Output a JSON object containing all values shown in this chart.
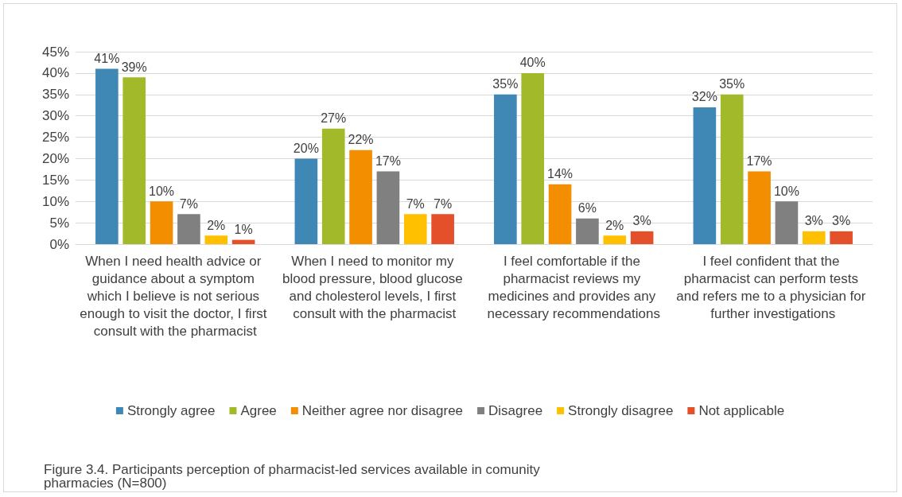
{
  "chart_data": {
    "type": "bar",
    "categories": [
      "When I need health advice or guidance about a symptom which I believe is not serious enough to visit the doctor, I first consult with the pharmacist",
      "When I need to monitor my blood pressure, blood glucose and cholesterol levels, I first consult with the pharmacist",
      "I feel comfortable if the pharmacist reviews my medicines and provides any necessary recommendations",
      "I feel confident that the pharmacist can perform tests and refers me to a physician for further investigations"
    ],
    "series": [
      {
        "name": "Strongly agree",
        "color": "#3f88b5",
        "values": [
          41,
          20,
          35,
          32
        ],
        "value_labels": [
          "41%",
          "20%",
          "35%",
          "32%"
        ]
      },
      {
        "name": "Agree",
        "color": "#a2b92a",
        "values": [
          39,
          27,
          40,
          35
        ],
        "value_labels": [
          "39%",
          "27%",
          "40%",
          "35%"
        ]
      },
      {
        "name": "Neither agree nor disagree",
        "color": "#f28e00",
        "values": [
          10,
          22,
          14,
          17
        ],
        "value_labels": [
          "10%",
          "22%",
          "14%",
          "17%"
        ]
      },
      {
        "name": "Disagree",
        "color": "#808080",
        "values": [
          7,
          17,
          6,
          10
        ],
        "value_labels": [
          "7%",
          "17%",
          "6%",
          "10%"
        ]
      },
      {
        "name": "Strongly disagree",
        "color": "#ffc000",
        "values": [
          2,
          7,
          2,
          3
        ],
        "value_labels": [
          "2%",
          "7%",
          "2%",
          "3%"
        ]
      },
      {
        "name": "Not applicable",
        "color": "#e3502a",
        "values": [
          1,
          7,
          3,
          3
        ],
        "value_labels": [
          "1%",
          "7%",
          "3%",
          "3%"
        ]
      }
    ],
    "ylim": [
      0,
      45
    ],
    "yticks": [
      {
        "value": 0,
        "label": "0%"
      },
      {
        "value": 5,
        "label": "5%"
      },
      {
        "value": 10,
        "label": "10%"
      },
      {
        "value": 15,
        "label": "15%"
      },
      {
        "value": 20,
        "label": "20%"
      },
      {
        "value": 25,
        "label": "25%"
      },
      {
        "value": 30,
        "label": "30%"
      },
      {
        "value": 35,
        "label": "35%"
      },
      {
        "value": 40,
        "label": "40%"
      },
      {
        "value": 45,
        "label": "45%"
      }
    ],
    "grid": "y",
    "legend": "bottom",
    "annotations": [
      "Figure 3.4. Participants perception of pharmacist-led services available in comunity pharmacies (N=800)"
    ]
  }
}
